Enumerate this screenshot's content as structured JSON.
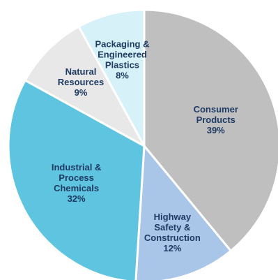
{
  "chart_data": {
    "type": "pie",
    "title": "",
    "slices": [
      {
        "lines": [
          "Consumer",
          "Products"
        ],
        "value": 39,
        "value_label": "39%",
        "color": "#bfbfbf",
        "text_color": "#1f3b63"
      },
      {
        "lines": [
          "Highway",
          "Safety &",
          "Construction"
        ],
        "value": 12,
        "value_label": "12%",
        "color": "#a9c5e8",
        "text_color": "#1f3b63"
      },
      {
        "lines": [
          "Industrial &",
          "Process",
          "Chemicals"
        ],
        "value": 32,
        "value_label": "32%",
        "color": "#5ec4e0",
        "text_color": "#1f3b63"
      },
      {
        "lines": [
          "Natural",
          "Resources"
        ],
        "value": 9,
        "value_label": "9%",
        "color": "#e8e8e8",
        "text_color": "#1f3b63"
      },
      {
        "lines": [
          "Packaging &",
          "Engineered",
          "Plastics"
        ],
        "value": 8,
        "value_label": "8%",
        "color": "#d6f1f7",
        "text_color": "#1f3b63"
      }
    ]
  }
}
